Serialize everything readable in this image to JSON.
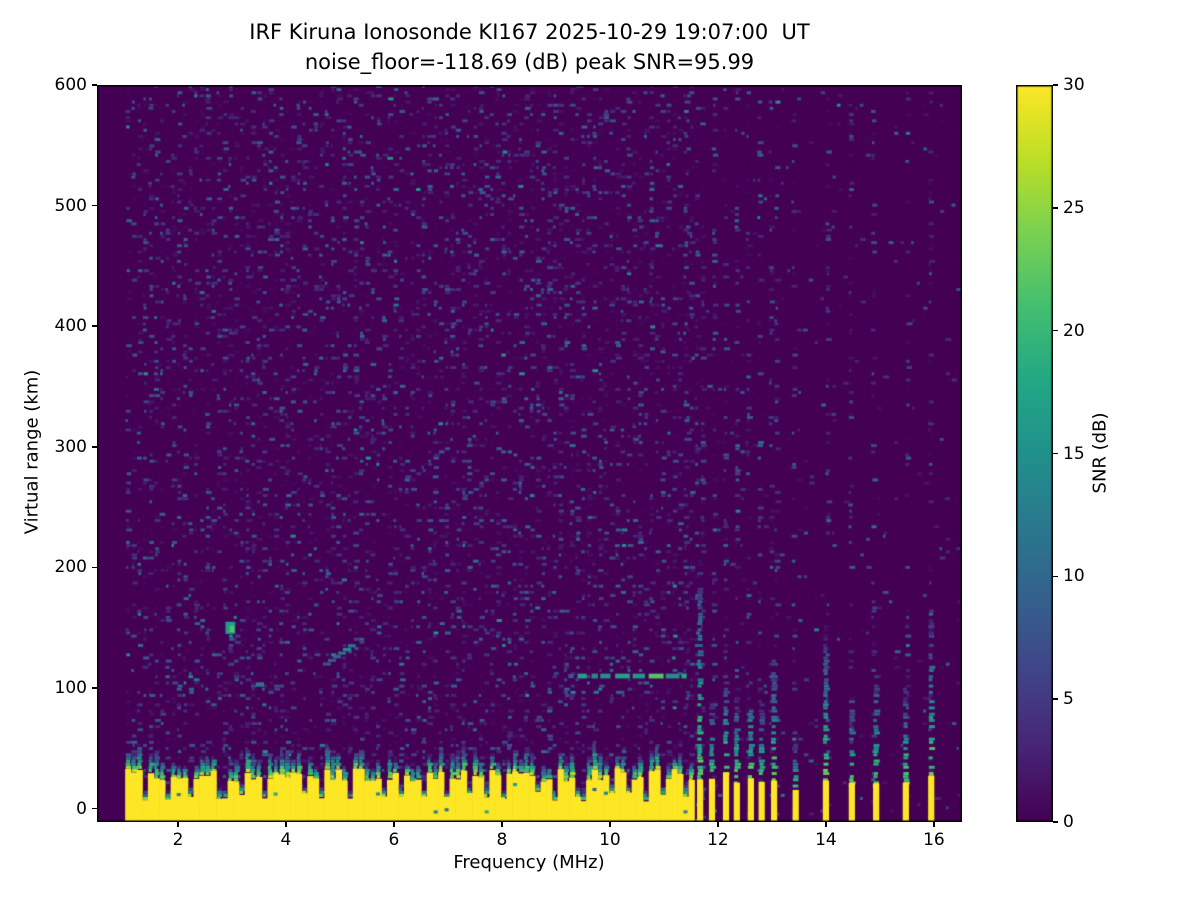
{
  "figure": {
    "title_line1": "IRF Kiruna Ionosonde KI167 2025-10-29 19:07:00  UT",
    "title_line2": "noise_floor=-118.69 (dB) peak SNR=95.99"
  },
  "chart_data": {
    "type": "heatmap",
    "title": "IRF Kiruna Ionosonde KI167 2025-10-29 19:07:00  UT",
    "subtitle": "noise_floor=-118.69 (dB) peak SNR=95.99",
    "xlabel": "Frequency (MHz)",
    "ylabel": "Virtual range (km)",
    "colorbar_label": "SNR (dB)",
    "xlim": [
      0.5,
      16.52
    ],
    "ylim": [
      -11,
      600
    ],
    "clim": [
      0,
      30
    ],
    "xticks": [
      2,
      4,
      6,
      8,
      10,
      12,
      14,
      16
    ],
    "yticks": [
      0,
      100,
      200,
      300,
      400,
      500,
      600
    ],
    "colorbar_ticks": [
      0,
      5,
      10,
      15,
      20,
      25,
      30
    ],
    "grid": false,
    "colormap": {
      "name": "viridis",
      "stops": [
        [
          0.0,
          "#440154"
        ],
        [
          0.1,
          "#482475"
        ],
        [
          0.2,
          "#414487"
        ],
        [
          0.3,
          "#35608d"
        ],
        [
          0.4,
          "#2a788e"
        ],
        [
          0.5,
          "#21918c"
        ],
        [
          0.6,
          "#22a884"
        ],
        [
          0.7,
          "#44bf70"
        ],
        [
          0.8,
          "#7ad151"
        ],
        [
          0.9,
          "#bddf26"
        ],
        [
          1.0,
          "#fde725"
        ]
      ]
    },
    "data_freq_range": [
      1.0,
      16.45
    ],
    "noise": {
      "seed": 20251029,
      "grid_cols": 152,
      "grid_rows": 236,
      "density_uniform": 0.32,
      "density_right_background": 0.035,
      "density_rfi_column": 0.3,
      "snr_typical_max_db": 10,
      "snr_hot_speck_range_db": [
        7,
        16
      ]
    },
    "ground_band": {
      "f_start_mhz": 1.0,
      "f_end_mhz": 11.58,
      "yellow_top_mean_km": 28,
      "yellow_top_jitter_km": 11,
      "teal_fringe_min_km": 10,
      "teal_fringe_max_km": 26,
      "notch_spacing_mhz_min": 0.28,
      "notch_spacing_mhz_max": 0.7,
      "notch_depth_factor": 0.25,
      "peak_snr_db": 30
    },
    "rfi_stripes": {
      "width_mhz": 0.11,
      "items": [
        {
          "f": 11.67,
          "yellow_top_km": 28,
          "teal_top_km": 210
        },
        {
          "f": 11.89,
          "yellow_top_km": 26,
          "teal_top_km": 85
        },
        {
          "f": 12.15,
          "yellow_top_km": 28,
          "teal_top_km": 115
        },
        {
          "f": 12.35,
          "yellow_top_km": 25,
          "teal_top_km": 95
        },
        {
          "f": 12.61,
          "yellow_top_km": 27,
          "teal_top_km": 105
        },
        {
          "f": 12.81,
          "yellow_top_km": 25,
          "teal_top_km": 85
        },
        {
          "f": 13.04,
          "yellow_top_km": 26,
          "teal_top_km": 125
        },
        {
          "f": 13.44,
          "yellow_top_km": 15,
          "teal_top_km": 55
        },
        {
          "f": 14.0,
          "yellow_top_km": 24,
          "teal_top_km": 150
        },
        {
          "f": 14.48,
          "yellow_top_km": 22,
          "teal_top_km": 90
        },
        {
          "f": 14.93,
          "yellow_top_km": 23,
          "teal_top_km": 110
        },
        {
          "f": 15.48,
          "yellow_top_km": 24,
          "teal_top_km": 100
        },
        {
          "f": 15.95,
          "yellow_top_km": 25,
          "teal_top_km": 165
        }
      ]
    },
    "echo_trace": {
      "f_start_mhz": 9.4,
      "f_end_mhz": 11.42,
      "km": 110,
      "thickness_km": 4,
      "snr_min_db": 13,
      "snr_max_db": 22,
      "style": "dashed"
    },
    "features": [
      {
        "type": "blob",
        "f": 2.97,
        "km": 150,
        "w_mhz": 0.18,
        "h_km": 10,
        "snr": 17
      },
      {
        "type": "blob",
        "f": 3.0,
        "km": 149,
        "w_mhz": 0.08,
        "h_km": 5,
        "snr": 22
      },
      {
        "type": "diag",
        "f0": 4.76,
        "km0": 120,
        "f1": 5.22,
        "km1": 135,
        "snr": 10,
        "steps": 6
      },
      {
        "type": "dash",
        "f": 3.52,
        "km": 103,
        "w_mhz": 0.15,
        "h_km": 3.5,
        "snr": 12
      },
      {
        "type": "dash",
        "f": 9.28,
        "km": 110,
        "w_mhz": 0.1,
        "h_km": 3.5,
        "snr": 8
      },
      {
        "type": "column",
        "f": 11.45,
        "km_top": 120,
        "density": 0.3,
        "snr_max": 8
      }
    ]
  }
}
